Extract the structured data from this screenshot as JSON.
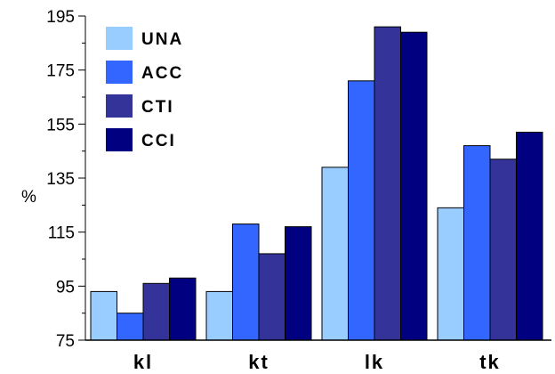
{
  "chart_data": {
    "type": "bar",
    "categories": [
      "kl",
      "kt",
      "lk",
      "tk"
    ],
    "series": [
      {
        "name": "UNA",
        "color": "#99ccff",
        "values": [
          93,
          93,
          139,
          124
        ]
      },
      {
        "name": "ACC",
        "color": "#3366ff",
        "values": [
          85,
          118,
          171,
          147
        ]
      },
      {
        "name": "CTI",
        "color": "#333399",
        "values": [
          96,
          107,
          191,
          142
        ]
      },
      {
        "name": "CCI",
        "color": "#000080",
        "values": [
          98,
          117,
          189,
          152
        ]
      }
    ],
    "ylabel": "%",
    "ylim": [
      75,
      195
    ],
    "yticks": [
      75,
      95,
      115,
      135,
      155,
      175,
      195
    ],
    "legend_position": "top-left",
    "grid": false
  }
}
